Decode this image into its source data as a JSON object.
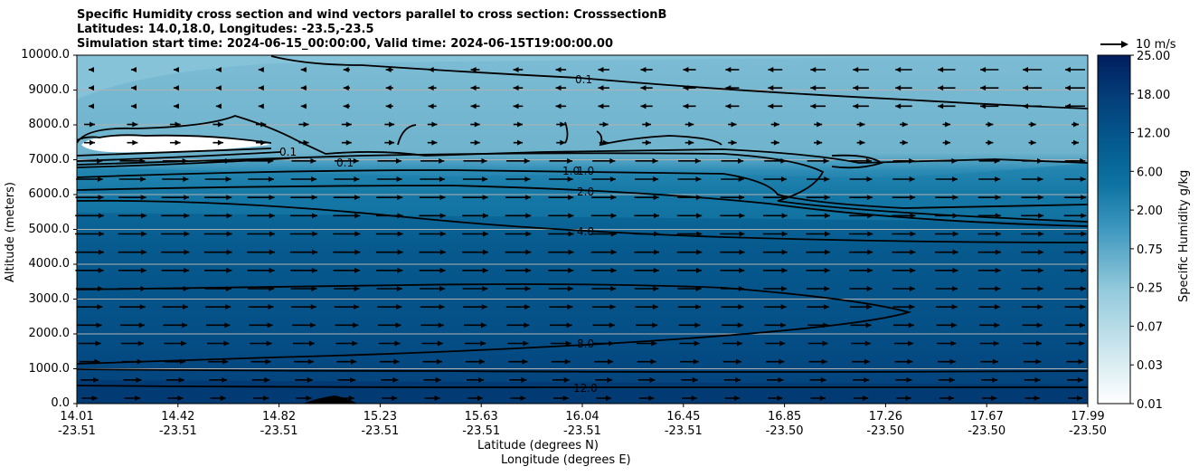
{
  "title_lines": [
    "Specific Humidity cross section and wind vectors parallel to cross section: CrosssectionB",
    "Latitudes: 14.0,18.0, Longitudes: -23.5,-23.5",
    "Simulation start time: 2024-06-15_00:00:00, Valid time: 2024-06-15T19:00:00.00"
  ],
  "chart_data": {
    "type": "heatmap",
    "ylabel": "Altitude (meters)",
    "xlabel_lat": "Latitude (degrees N)",
    "xlabel_lon": "Longitude (degrees E)",
    "ylim": [
      0,
      10000
    ],
    "yticks": [
      "0.0",
      "1000.0",
      "2000.0",
      "3000.0",
      "4000.0",
      "5000.0",
      "6000.0",
      "7000.0",
      "8000.0",
      "9000.0",
      "10000.0"
    ],
    "xticks": [
      {
        "lat": "14.01",
        "lon": "-23.51"
      },
      {
        "lat": "14.42",
        "lon": "-23.51"
      },
      {
        "lat": "14.82",
        "lon": "-23.51"
      },
      {
        "lat": "15.23",
        "lon": "-23.51"
      },
      {
        "lat": "15.63",
        "lon": "-23.51"
      },
      {
        "lat": "16.04",
        "lon": "-23.51"
      },
      {
        "lat": "16.45",
        "lon": "-23.51"
      },
      {
        "lat": "16.85",
        "lon": "-23.50"
      },
      {
        "lat": "17.26",
        "lon": "-23.50"
      },
      {
        "lat": "17.67",
        "lon": "-23.50"
      },
      {
        "lat": "17.99",
        "lon": "-23.50"
      }
    ],
    "colorbar": {
      "label": "Specific Humidity g/kg",
      "levels": [
        0.01,
        0.03,
        0.07,
        0.25,
        0.75,
        2.0,
        6.0,
        12.0,
        18.0,
        25.0
      ],
      "tick_labels": [
        "0.01",
        "0.03",
        "0.07",
        "0.25",
        "0.75",
        "2.00",
        "6.00",
        "12.00",
        "18.00",
        "25.00"
      ]
    },
    "contour_labels": [
      "0.1",
      "1.0",
      "2.0",
      "4.0",
      "8.0",
      "12.0"
    ],
    "wind_reference": "10 m/s",
    "grid": true
  }
}
